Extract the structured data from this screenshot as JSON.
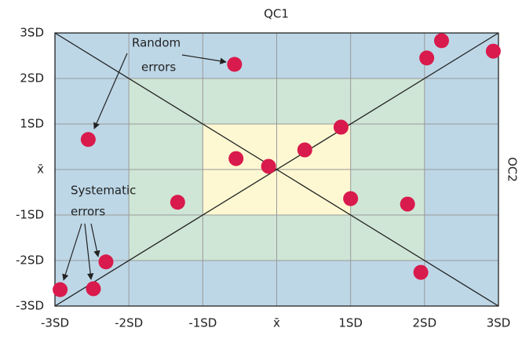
{
  "chart_data": {
    "type": "scatter",
    "title": "QC1",
    "y_label": "OC2",
    "xlim": [
      -3,
      3
    ],
    "ylim": [
      -3,
      3
    ],
    "xticks": [
      {
        "value": -3,
        "label": "-3SD"
      },
      {
        "value": -2,
        "label": "-2SD"
      },
      {
        "value": -1,
        "label": "-1SD"
      },
      {
        "value": 0,
        "label": "x̄"
      },
      {
        "value": 1,
        "label": "1SD"
      },
      {
        "value": 2,
        "label": "2SD"
      },
      {
        "value": 3,
        "label": "3SD"
      }
    ],
    "yticks": [
      {
        "value": -3,
        "label": "-3SD"
      },
      {
        "value": -2,
        "label": "-2SD"
      },
      {
        "value": -1,
        "label": "-1SD"
      },
      {
        "value": 0,
        "label": "x̄"
      },
      {
        "value": 1,
        "label": "1SD"
      },
      {
        "value": 2,
        "label": "2SD"
      },
      {
        "value": 3,
        "label": "3SD"
      }
    ],
    "zone_colors": [
      "#bdd7e7",
      "#cfe6d6",
      "#fdf8d2"
    ],
    "grid": true,
    "color": "#d91a4c",
    "x": [
      -0.57,
      -2.55,
      -0.55,
      -0.11,
      0.38,
      0.87,
      -1.34,
      1.0,
      1.77,
      2.03,
      2.23,
      2.93,
      1.95,
      -2.31,
      -2.93,
      -2.48
    ],
    "values": [
      2.31,
      0.66,
      0.24,
      0.07,
      0.43,
      0.93,
      -0.72,
      -0.64,
      -0.76,
      2.45,
      2.83,
      2.6,
      -2.26,
      -2.03,
      -2.64,
      -2.62
    ],
    "annotations": [
      [
        "Random",
        "errors"
      ],
      [
        "Systematic",
        "errors"
      ]
    ]
  }
}
